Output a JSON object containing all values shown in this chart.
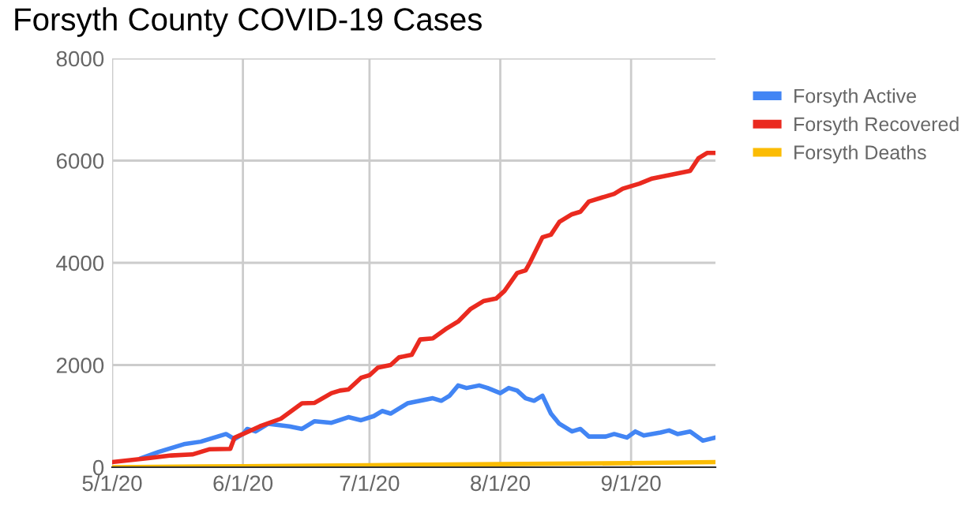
{
  "chart_data": {
    "type": "line",
    "title": "Forsyth County COVID-19 Cases",
    "xlim": [
      "2020-05-01",
      "2020-09-21"
    ],
    "xticks": [
      {
        "value": "2020-05-01",
        "label": "5/1/20"
      },
      {
        "value": "2020-06-01",
        "label": "6/1/20"
      },
      {
        "value": "2020-07-01",
        "label": "7/1/20"
      },
      {
        "value": "2020-08-01",
        "label": "8/1/20"
      },
      {
        "value": "2020-09-01",
        "label": "9/1/20"
      }
    ],
    "ylim": [
      0,
      8000
    ],
    "yticks": [
      0,
      2000,
      4000,
      6000,
      8000
    ],
    "grid": true,
    "legend": "right",
    "series": [
      {
        "name": "Forsyth Active",
        "color": "#4285f4",
        "x": [
          "2020-05-08",
          "2020-05-12",
          "2020-05-16",
          "2020-05-18",
          "2020-05-22",
          "2020-05-26",
          "2020-05-28",
          "2020-05-30",
          "2020-06-01",
          "2020-06-02",
          "2020-06-04",
          "2020-06-07",
          "2020-06-12",
          "2020-06-15",
          "2020-06-18",
          "2020-06-22",
          "2020-06-26",
          "2020-06-29",
          "2020-07-02",
          "2020-07-04",
          "2020-07-06",
          "2020-07-10",
          "2020-07-13",
          "2020-07-16",
          "2020-07-18",
          "2020-07-20",
          "2020-07-22",
          "2020-07-24",
          "2020-07-27",
          "2020-07-29",
          "2020-08-01",
          "2020-08-03",
          "2020-08-05",
          "2020-08-07",
          "2020-08-09",
          "2020-08-11",
          "2020-08-13",
          "2020-08-15",
          "2020-08-18",
          "2020-08-20",
          "2020-08-22",
          "2020-08-26",
          "2020-08-28",
          "2020-08-31",
          "2020-09-02",
          "2020-09-04",
          "2020-09-08",
          "2020-09-10",
          "2020-09-12",
          "2020-09-15",
          "2020-09-18",
          "2020-09-21"
        ],
        "values": [
          180,
          300,
          400,
          450,
          500,
          600,
          650,
          550,
          650,
          750,
          700,
          850,
          800,
          750,
          900,
          870,
          980,
          920,
          1000,
          1100,
          1050,
          1250,
          1300,
          1350,
          1300,
          1400,
          1600,
          1550,
          1600,
          1550,
          1450,
          1550,
          1500,
          1350,
          1300,
          1400,
          1050,
          850,
          700,
          750,
          600,
          600,
          650,
          580,
          700,
          620,
          680,
          720,
          650,
          700,
          520,
          580
        ]
      },
      {
        "name": "Forsyth Recovered",
        "color": "#ea2a1f",
        "x": [
          "2020-05-01",
          "2020-05-10",
          "2020-05-15",
          "2020-05-20",
          "2020-05-22",
          "2020-05-24",
          "2020-05-29",
          "2020-05-30",
          "2020-06-01",
          "2020-06-05",
          "2020-06-10",
          "2020-06-15",
          "2020-06-18",
          "2020-06-22",
          "2020-06-24",
          "2020-06-26",
          "2020-06-29",
          "2020-07-01",
          "2020-07-03",
          "2020-07-06",
          "2020-07-08",
          "2020-07-11",
          "2020-07-13",
          "2020-07-16",
          "2020-07-19",
          "2020-07-22",
          "2020-07-25",
          "2020-07-28",
          "2020-07-31",
          "2020-08-02",
          "2020-08-05",
          "2020-08-07",
          "2020-08-08",
          "2020-08-11",
          "2020-08-13",
          "2020-08-15",
          "2020-08-18",
          "2020-08-20",
          "2020-08-22",
          "2020-08-26",
          "2020-08-28",
          "2020-08-30",
          "2020-09-03",
          "2020-09-06",
          "2020-09-09",
          "2020-09-12",
          "2020-09-15",
          "2020-09-17",
          "2020-09-19",
          "2020-09-21"
        ],
        "values": [
          100,
          180,
          230,
          250,
          300,
          350,
          360,
          580,
          650,
          800,
          950,
          1250,
          1260,
          1450,
          1500,
          1520,
          1750,
          1800,
          1950,
          2000,
          2150,
          2200,
          2500,
          2520,
          2700,
          2850,
          3100,
          3250,
          3300,
          3450,
          3800,
          3850,
          4000,
          4500,
          4550,
          4800,
          4950,
          5000,
          5200,
          5300,
          5350,
          5450,
          5550,
          5650,
          5700,
          5750,
          5800,
          6050,
          6150,
          6150
        ]
      },
      {
        "name": "Forsyth Deaths",
        "color": "#fbbc04",
        "x": [
          "2020-05-01",
          "2020-06-01",
          "2020-07-01",
          "2020-08-01",
          "2020-09-01",
          "2020-09-21"
        ],
        "values": [
          0,
          20,
          40,
          60,
          80,
          100
        ]
      }
    ]
  }
}
